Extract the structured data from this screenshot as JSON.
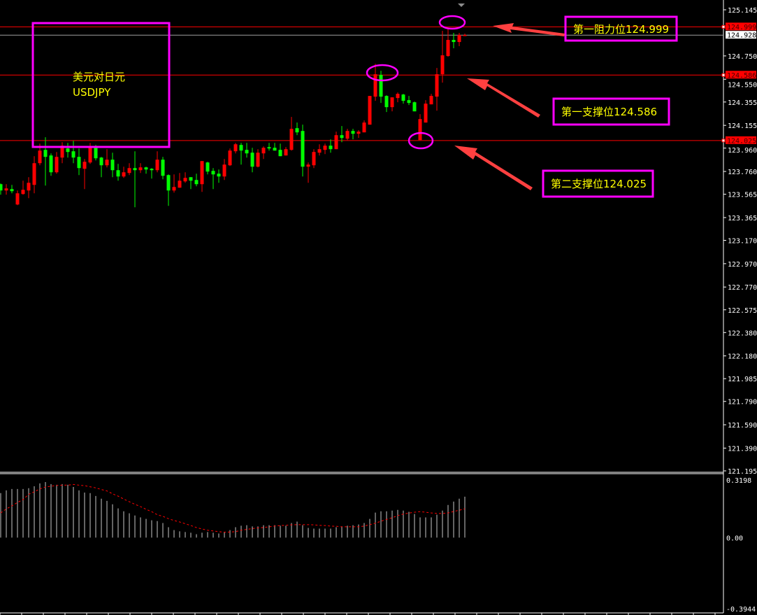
{
  "chart_data": {
    "type": "candlestick",
    "symbol_note": "美元对日元",
    "symbol": "USDJPY",
    "colors": {
      "background": "#000000",
      "up_candle": "#ff0000",
      "down_candle": "#00ff00",
      "level_line": "#ff0000",
      "bid_line": "#a0a0a0",
      "annotation_box": "#ff00ff",
      "annotation_text": "#ffff00",
      "arrow": "#ff4040",
      "histogram": "#c8c8c8",
      "signal": "#ff0000"
    },
    "candles_ohlc": [
      [
        123.651,
        123.657,
        123.561,
        123.597
      ],
      [
        123.597,
        123.651,
        123.561,
        123.615
      ],
      [
        123.609,
        123.645,
        123.573,
        123.591
      ],
      [
        123.477,
        123.597,
        123.471,
        123.573
      ],
      [
        123.567,
        123.681,
        123.561,
        123.603
      ],
      [
        123.597,
        123.711,
        123.531,
        123.663
      ],
      [
        123.645,
        123.891,
        123.573,
        123.831
      ],
      [
        123.831,
        123.999,
        123.813,
        123.939
      ],
      [
        123.945,
        124.053,
        123.639,
        123.885
      ],
      [
        123.897,
        123.915,
        123.723,
        123.753
      ],
      [
        123.753,
        123.927,
        123.741,
        123.885
      ],
      [
        123.879,
        124.011,
        123.831,
        123.981
      ],
      [
        123.957,
        124.005,
        123.879,
        123.927
      ],
      [
        123.933,
        124.023,
        123.831,
        123.879
      ],
      [
        123.885,
        123.957,
        123.729,
        123.789
      ],
      [
        123.783,
        123.867,
        123.609,
        123.843
      ],
      [
        123.837,
        124.005,
        123.825,
        123.975
      ],
      [
        123.963,
        123.987,
        123.855,
        123.873
      ],
      [
        123.879,
        123.885,
        123.711,
        123.813
      ],
      [
        123.813,
        123.951,
        123.795,
        123.861
      ],
      [
        123.861,
        123.921,
        123.711,
        123.771
      ],
      [
        123.771,
        123.825,
        123.681,
        123.717
      ],
      [
        123.717,
        123.801,
        123.705,
        123.753
      ],
      [
        123.747,
        123.831,
        123.729,
        123.789
      ],
      [
        123.789,
        123.933,
        123.453,
        123.771
      ],
      [
        123.771,
        123.831,
        123.747,
        123.795
      ],
      [
        123.795,
        123.801,
        123.741,
        123.777
      ],
      [
        123.783,
        123.789,
        123.699,
        123.771
      ],
      [
        123.771,
        123.933,
        123.753,
        123.861
      ],
      [
        123.861,
        123.885,
        123.693,
        123.723
      ],
      [
        123.729,
        123.735,
        123.465,
        123.597
      ],
      [
        123.597,
        123.735,
        123.579,
        123.627
      ],
      [
        123.621,
        123.747,
        123.621,
        123.681
      ],
      [
        123.675,
        123.753,
        123.663,
        123.705
      ],
      [
        123.711,
        123.711,
        123.609,
        123.681
      ],
      [
        123.687,
        123.741,
        123.633,
        123.651
      ],
      [
        123.651,
        123.849,
        123.585,
        123.849
      ],
      [
        123.837,
        123.843,
        123.735,
        123.759
      ],
      [
        123.765,
        123.789,
        123.609,
        123.735
      ],
      [
        123.741,
        123.777,
        123.663,
        123.717
      ],
      [
        123.717,
        123.867,
        123.687,
        123.819
      ],
      [
        123.813,
        123.957,
        123.807,
        123.939
      ],
      [
        123.933,
        124.005,
        123.915,
        123.993
      ],
      [
        123.987,
        124.005,
        123.819,
        123.939
      ],
      [
        123.945,
        124.005,
        123.879,
        123.915
      ],
      [
        123.921,
        123.963,
        123.753,
        123.801
      ],
      [
        123.801,
        123.951,
        123.795,
        123.921
      ],
      [
        123.915,
        123.975,
        123.867,
        123.963
      ],
      [
        123.969,
        124.005,
        123.939,
        123.957
      ],
      [
        123.963,
        124.005,
        123.939,
        123.939
      ],
      [
        123.945,
        123.999,
        123.891,
        123.891
      ],
      [
        123.897,
        123.969,
        123.897,
        123.951
      ],
      [
        123.945,
        124.227,
        123.939,
        124.125
      ],
      [
        124.131,
        124.179,
        124.071,
        124.095
      ],
      [
        124.107,
        124.161,
        123.717,
        123.801
      ],
      [
        123.801,
        123.837,
        123.663,
        123.819
      ],
      [
        123.813,
        123.951,
        123.789,
        123.927
      ],
      [
        123.921,
        123.993,
        123.897,
        123.951
      ],
      [
        123.945,
        123.999,
        123.909,
        123.981
      ],
      [
        123.981,
        124.035,
        123.921,
        123.951
      ],
      [
        123.951,
        124.101,
        123.951,
        124.071
      ],
      [
        124.071,
        124.149,
        124.011,
        124.047
      ],
      [
        124.041,
        124.125,
        124.029,
        124.107
      ],
      [
        124.107,
        124.125,
        124.035,
        124.083
      ],
      [
        124.083,
        124.113,
        124.047,
        124.101
      ],
      [
        124.095,
        124.197,
        124.095,
        124.179
      ],
      [
        124.161,
        124.407,
        124.161,
        124.407
      ],
      [
        124.401,
        124.683,
        124.365,
        124.593
      ],
      [
        124.587,
        124.623,
        124.347,
        124.401
      ],
      [
        124.407,
        124.413,
        124.269,
        124.311
      ],
      [
        124.311,
        124.395,
        124.275,
        124.395
      ],
      [
        124.389,
        124.437,
        124.353,
        124.425
      ],
      [
        124.419,
        124.425,
        124.341,
        124.365
      ],
      [
        124.371,
        124.407,
        124.329,
        124.347
      ],
      [
        124.353,
        124.359,
        124.275,
        124.275
      ],
      [
        124.029,
        124.251,
        124.029,
        124.209
      ],
      [
        124.179,
        124.371,
        124.179,
        124.341
      ],
      [
        124.335,
        124.425,
        124.335,
        124.407
      ],
      [
        124.401,
        124.647,
        124.281,
        124.593
      ],
      [
        124.593,
        124.965,
        124.521,
        124.755
      ],
      [
        124.749,
        124.989,
        124.743,
        124.887
      ],
      [
        124.887,
        124.947,
        124.815,
        124.869
      ],
      [
        124.869,
        124.947,
        124.833,
        124.929
      ],
      [
        124.923,
        124.941,
        124.923,
        124.929
      ]
    ],
    "price_range": [
      121.195,
      125.145
    ],
    "price_ticks": [
      "125.145",
      "124.750",
      "124.550",
      "124.355",
      "124.155",
      "123.960",
      "123.760",
      "123.565",
      "123.365",
      "123.170",
      "122.970",
      "122.770",
      "122.575",
      "122.380",
      "122.180",
      "121.985",
      "121.790",
      "121.590",
      "121.390",
      "121.195"
    ],
    "levels": [
      {
        "price": 124.999,
        "label": "124.999"
      },
      {
        "price": 124.586,
        "label": "124.586"
      },
      {
        "price": 124.025,
        "label": "124.025"
      }
    ],
    "bid": {
      "price": 124.928,
      "label": "124.928"
    },
    "annotations": [
      {
        "text": "第一阻力位124.999"
      },
      {
        "text": "第一支撑位124.586"
      },
      {
        "text": "第二支撑位124.025"
      }
    ],
    "indicator": {
      "range": [
        -0.3944,
        0.3198
      ],
      "ticks": [
        "0.3198",
        "0.00",
        "-0.3944"
      ],
      "histogram": [
        0.247,
        0.262,
        0.27,
        0.27,
        0.27,
        0.274,
        0.285,
        0.301,
        0.308,
        0.297,
        0.293,
        0.297,
        0.293,
        0.281,
        0.262,
        0.25,
        0.247,
        0.231,
        0.216,
        0.204,
        0.185,
        0.162,
        0.146,
        0.135,
        0.123,
        0.112,
        0.104,
        0.096,
        0.092,
        0.081,
        0.058,
        0.042,
        0.035,
        0.031,
        0.027,
        0.019,
        0.027,
        0.031,
        0.027,
        0.023,
        0.031,
        0.042,
        0.058,
        0.066,
        0.069,
        0.062,
        0.062,
        0.069,
        0.069,
        0.069,
        0.066,
        0.066,
        0.081,
        0.089,
        0.069,
        0.054,
        0.05,
        0.05,
        0.05,
        0.05,
        0.058,
        0.062,
        0.066,
        0.069,
        0.073,
        0.081,
        0.104,
        0.139,
        0.146,
        0.146,
        0.15,
        0.154,
        0.15,
        0.143,
        0.131,
        0.112,
        0.112,
        0.112,
        0.127,
        0.15,
        0.181,
        0.2,
        0.216,
        0.227
      ],
      "signal": [
        0.137,
        0.159,
        0.176,
        0.195,
        0.211,
        0.24,
        0.254,
        0.27,
        0.281,
        0.285,
        0.289,
        0.291,
        0.291,
        0.295,
        0.291,
        0.288,
        0.282,
        0.276,
        0.267,
        0.259,
        0.243,
        0.23,
        0.214,
        0.199,
        0.185,
        0.172,
        0.157,
        0.144,
        0.127,
        0.118,
        0.105,
        0.095,
        0.087,
        0.077,
        0.067,
        0.056,
        0.048,
        0.041,
        0.037,
        0.033,
        0.03,
        0.031,
        0.033,
        0.041,
        0.046,
        0.05,
        0.054,
        0.056,
        0.06,
        0.064,
        0.067,
        0.068,
        0.071,
        0.072,
        0.072,
        0.072,
        0.071,
        0.068,
        0.067,
        0.064,
        0.063,
        0.06,
        0.06,
        0.06,
        0.06,
        0.064,
        0.072,
        0.08,
        0.091,
        0.101,
        0.11,
        0.122,
        0.131,
        0.136,
        0.141,
        0.144,
        0.141,
        0.137,
        0.134,
        0.134,
        0.137,
        0.145,
        0.152,
        0.16
      ]
    }
  }
}
